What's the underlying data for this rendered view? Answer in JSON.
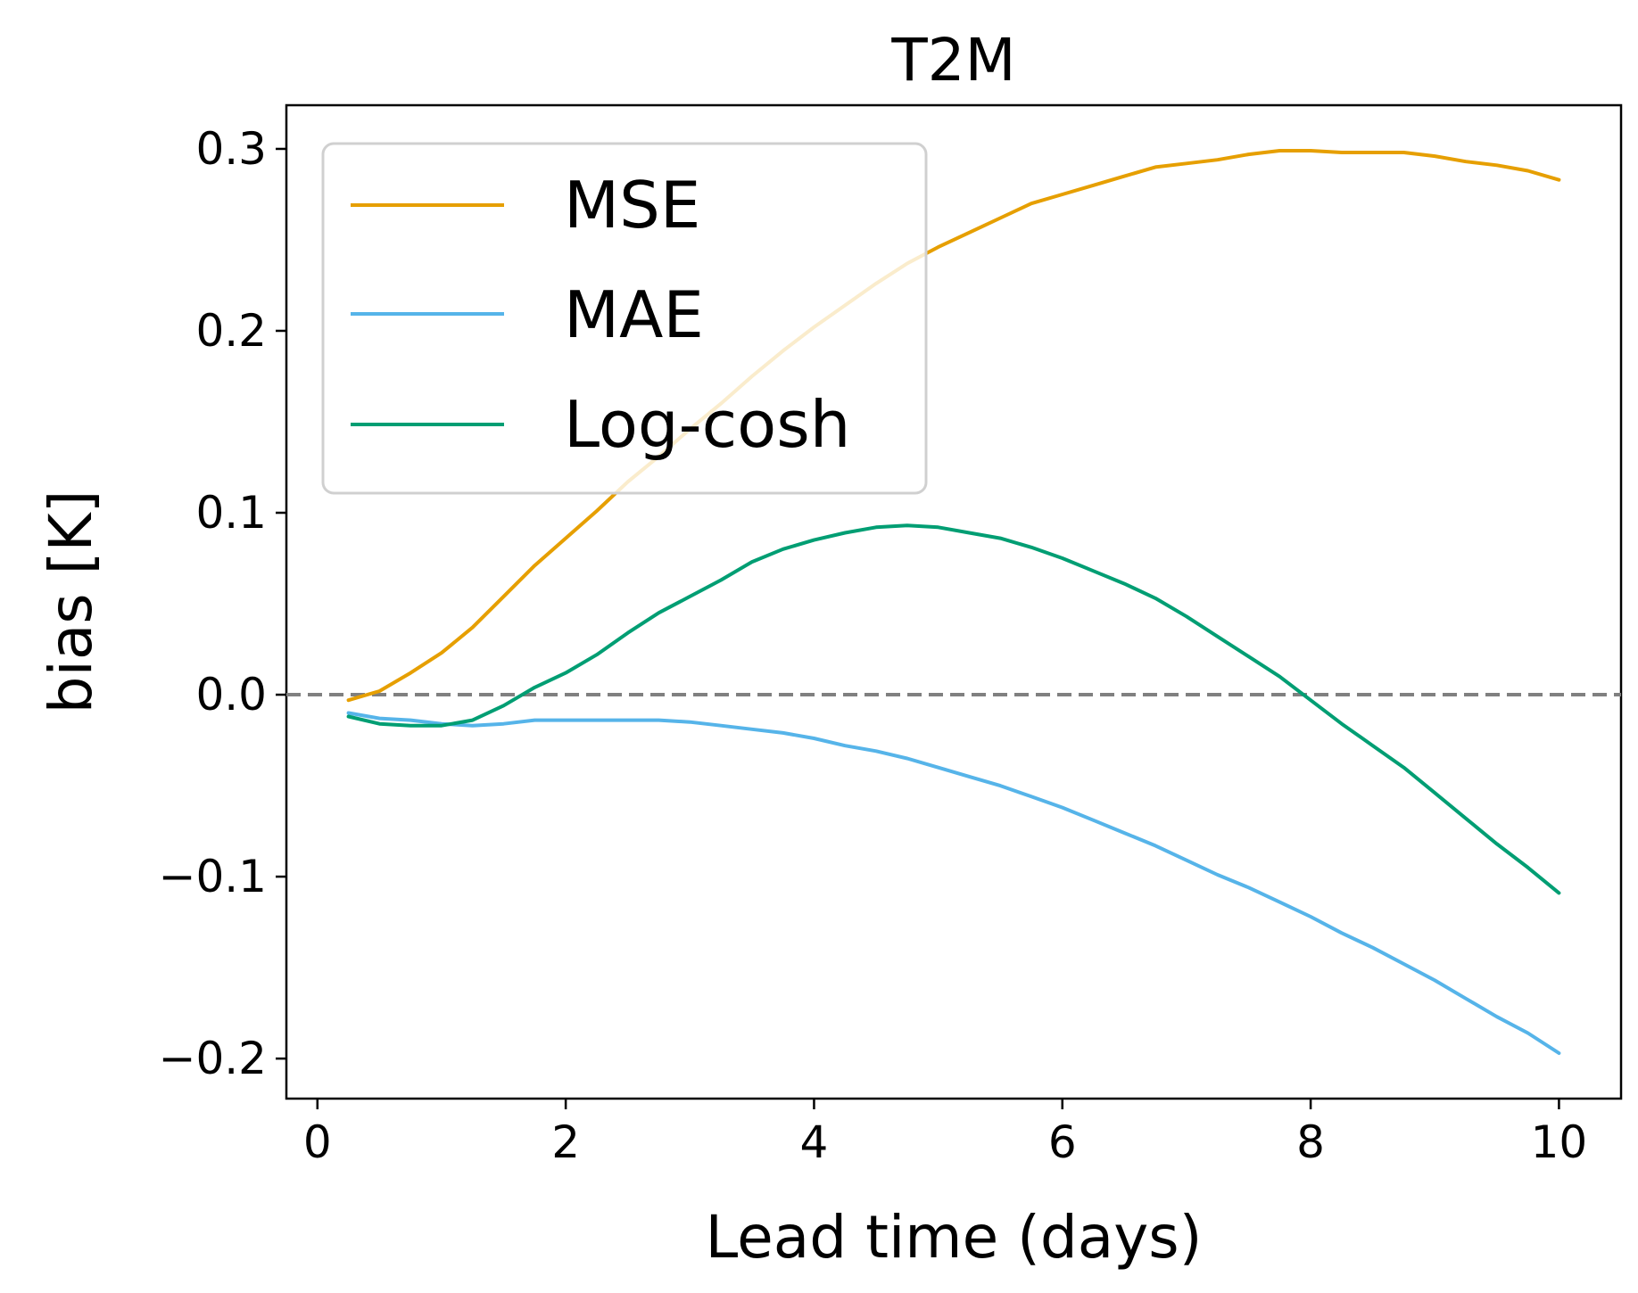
{
  "chart_data": {
    "type": "line",
    "title": "T2M",
    "xlabel": "Lead time (days)",
    "ylabel": "bias [K]",
    "xlim": [
      -0.25,
      10.5
    ],
    "ylim": [
      -0.222,
      0.324
    ],
    "xticks": [
      0,
      2,
      4,
      6,
      8,
      10
    ],
    "xtick_labels": [
      "0",
      "2",
      "4",
      "6",
      "8",
      "10"
    ],
    "yticks": [
      -0.2,
      -0.1,
      0.0,
      0.1,
      0.2,
      0.3
    ],
    "ytick_labels": [
      "−0.2",
      "−0.1",
      "0.0",
      "0.1",
      "0.2",
      "0.3"
    ],
    "grid": false,
    "legend_position": "top-left",
    "reference_line": {
      "y": 0.0,
      "style": "dashed",
      "color": "#808080"
    },
    "x": [
      0.25,
      0.5,
      0.75,
      1.0,
      1.25,
      1.5,
      1.75,
      2.0,
      2.25,
      2.5,
      2.75,
      3.0,
      3.25,
      3.5,
      3.75,
      4.0,
      4.25,
      4.5,
      4.75,
      5.0,
      5.25,
      5.5,
      5.75,
      6.0,
      6.25,
      6.5,
      6.75,
      7.0,
      7.25,
      7.5,
      7.75,
      8.0,
      8.25,
      8.5,
      8.75,
      9.0,
      9.25,
      9.5,
      9.75,
      10.0
    ],
    "series": [
      {
        "name": "MSE",
        "color": "#E69F00",
        "values": [
          -0.003,
          0.002,
          0.012,
          0.023,
          0.037,
          0.054,
          0.071,
          0.086,
          0.101,
          0.117,
          0.131,
          0.146,
          0.16,
          0.175,
          0.189,
          0.202,
          0.214,
          0.226,
          0.237,
          0.246,
          0.254,
          0.262,
          0.27,
          0.275,
          0.28,
          0.285,
          0.29,
          0.292,
          0.294,
          0.297,
          0.299,
          0.299,
          0.298,
          0.298,
          0.298,
          0.296,
          0.293,
          0.291,
          0.288,
          0.283
        ]
      },
      {
        "name": "MAE",
        "color": "#56B4E9",
        "values": [
          -0.01,
          -0.013,
          -0.014,
          -0.016,
          -0.017,
          -0.016,
          -0.014,
          -0.014,
          -0.014,
          -0.014,
          -0.014,
          -0.015,
          -0.017,
          -0.019,
          -0.021,
          -0.024,
          -0.028,
          -0.031,
          -0.035,
          -0.04,
          -0.045,
          -0.05,
          -0.056,
          -0.062,
          -0.069,
          -0.076,
          -0.083,
          -0.091,
          -0.099,
          -0.106,
          -0.114,
          -0.122,
          -0.131,
          -0.139,
          -0.148,
          -0.157,
          -0.167,
          -0.177,
          -0.186,
          -0.197
        ]
      },
      {
        "name": "Log-cosh",
        "color": "#009E73",
        "values": [
          -0.012,
          -0.016,
          -0.017,
          -0.017,
          -0.014,
          -0.006,
          0.004,
          0.012,
          0.022,
          0.034,
          0.045,
          0.054,
          0.063,
          0.073,
          0.08,
          0.085,
          0.089,
          0.092,
          0.093,
          0.092,
          0.089,
          0.086,
          0.081,
          0.075,
          0.068,
          0.061,
          0.053,
          0.043,
          0.032,
          0.021,
          0.01,
          -0.003,
          -0.016,
          -0.028,
          -0.04,
          -0.054,
          -0.068,
          -0.082,
          -0.095,
          -0.109
        ]
      }
    ]
  }
}
